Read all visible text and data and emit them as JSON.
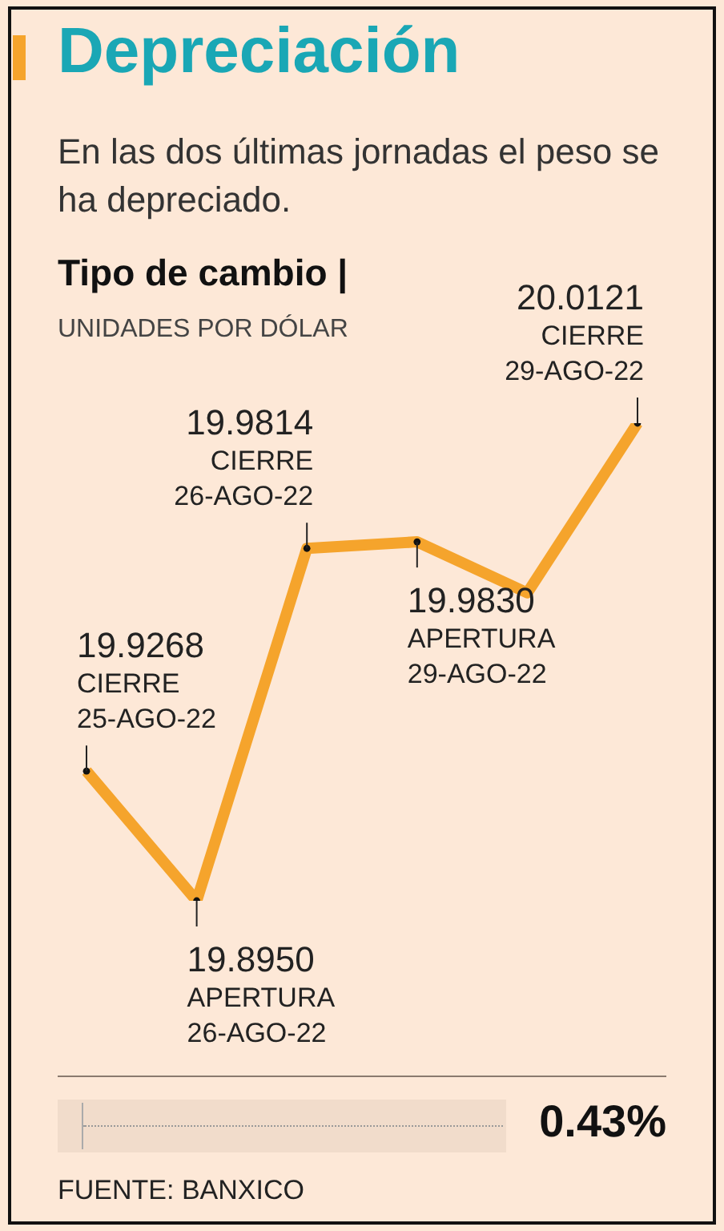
{
  "chart_data": {
    "type": "line",
    "title": "Depreciación",
    "subtitle": "En las dos últimas jornadas el peso se ha depreciado.",
    "ylabel": "Tipo de cambio |",
    "marker": "circle",
    "categories": [
      null,
      null,
      null,
      null,
      null,
      null
    ],
    "series": [
      {
        "color": "#f5a42c",
        "values": [
          19.9268,
          19.895,
          19.9814,
          19.983,
          19.9705,
          20.0121
        ],
        "value_labels": [
          "19.9268",
          "19.8950",
          "19.9814",
          "19.9830",
          null,
          "20.0121"
        ]
      }
    ],
    "annotations": [
      "UNIDADES POR DÓLAR",
      "0.43%",
      "FUENTE: BANXICO",
      "CIERRE 25-AGO-22",
      "APERTURA 26-AGO-22",
      "CIERRE 26-AGO-22",
      "APERTURA 29-AGO-22",
      "CIERRE 29-AGO-22"
    ],
    "grid": false,
    "legend": false
  }
}
